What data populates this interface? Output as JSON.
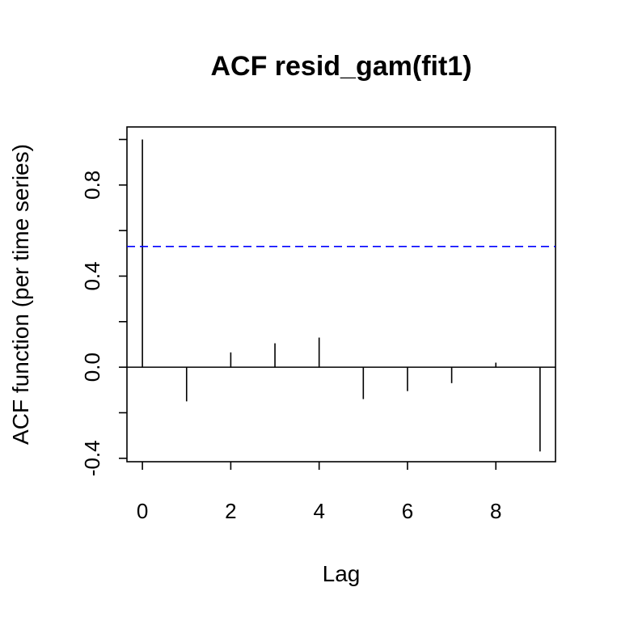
{
  "chart_data": {
    "type": "bar",
    "title": "ACF resid_gam(fit1)",
    "xlabel": "Lag",
    "ylabel": "ACF function (per time series)",
    "x": [
      0,
      1,
      2,
      3,
      4,
      5,
      6,
      7,
      8,
      9
    ],
    "values": [
      1.0,
      -0.15,
      0.065,
      0.105,
      0.13,
      -0.14,
      -0.105,
      -0.07,
      0.02,
      -0.37
    ],
    "xlim": [
      -0.35,
      9.35
    ],
    "ylim": [
      -0.415,
      1.055
    ],
    "x_ticks": [
      0,
      2,
      4,
      6,
      8
    ],
    "x_tick_labels": [
      "0",
      "2",
      "4",
      "6",
      "8"
    ],
    "y_ticks": [
      -0.4,
      -0.2,
      0.0,
      0.2,
      0.4,
      0.6,
      0.8,
      1.0
    ],
    "y_tick_labels": [
      "-0.4",
      "",
      "0.0",
      "",
      "0.4",
      "",
      "0.8",
      ""
    ],
    "confidence_line": 0.53,
    "confidence_color": "#0000ff",
    "grid": false,
    "legend": "none"
  }
}
